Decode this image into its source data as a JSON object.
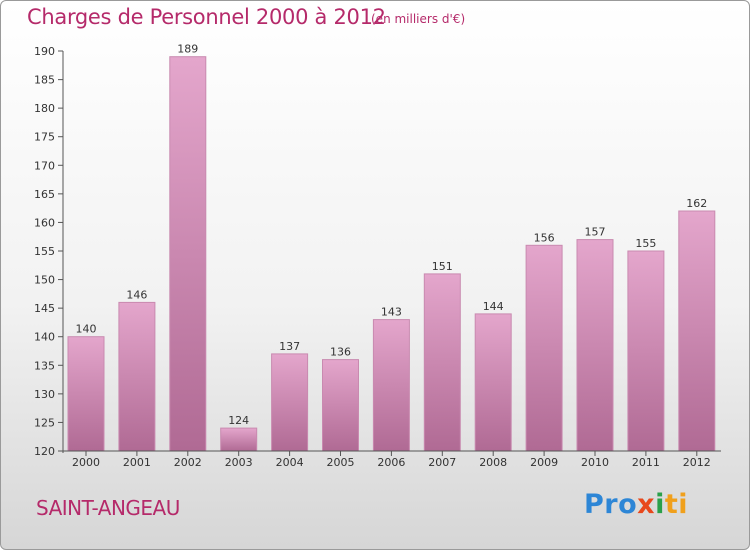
{
  "header": {
    "title": "Charges de Personnel 2000 à 2012",
    "subtitle": "(en milliers d'€)"
  },
  "footer": {
    "place": "SAINT-ANGEAU",
    "logo_parts": [
      "Pro",
      "x",
      "i",
      "ti"
    ]
  },
  "colors": {
    "accent": "#b52a6a",
    "bar_top": "#e4a6cc",
    "bar_bottom": "#b06a94"
  },
  "chart_data": {
    "type": "bar",
    "title": "Charges de Personnel 2000 à 2012",
    "subtitle": "(en milliers d'€)",
    "categories": [
      "2000",
      "2001",
      "2002",
      "2003",
      "2004",
      "2005",
      "2006",
      "2007",
      "2008",
      "2009",
      "2010",
      "2011",
      "2012"
    ],
    "values": [
      140,
      146,
      189,
      124,
      137,
      136,
      143,
      151,
      144,
      156,
      157,
      155,
      162
    ],
    "ylim": [
      120,
      190
    ],
    "yticks": [
      120,
      125,
      130,
      135,
      140,
      145,
      150,
      155,
      160,
      165,
      170,
      175,
      180,
      185,
      190
    ],
    "grid": false,
    "legend": "none"
  }
}
